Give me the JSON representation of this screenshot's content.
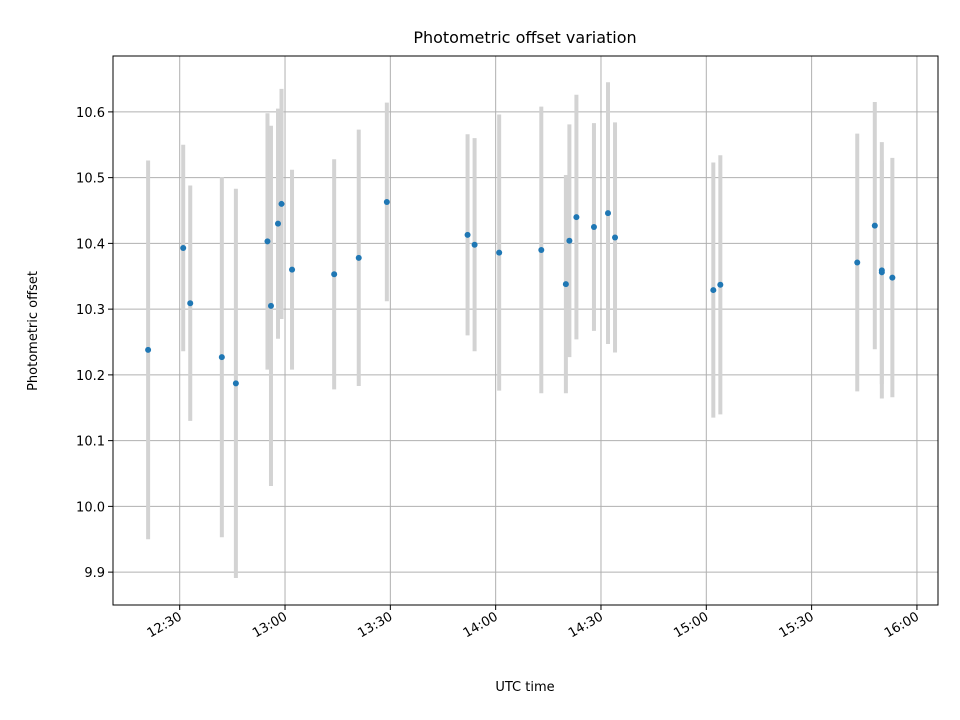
{
  "chart_data": {
    "type": "scatter",
    "title": "Photometric offset variation",
    "xlabel": "UTC time",
    "ylabel": "Photometric offset",
    "x_ticks": [
      "12:30",
      "13:00",
      "13:30",
      "14:00",
      "14:30",
      "15:00",
      "15:30",
      "16:00"
    ],
    "x_tick_values": [
      "12:30",
      "13:00",
      "13:30",
      "14:00",
      "14:30",
      "15:00",
      "15:30",
      "16:00"
    ],
    "y_ticks": [
      "9.9",
      "10.0",
      "10.1",
      "10.2",
      "10.3",
      "10.4",
      "10.5",
      "10.6"
    ],
    "y_tick_values": [
      9.9,
      10.0,
      10.1,
      10.2,
      10.3,
      10.4,
      10.5,
      10.6
    ],
    "xlim": [
      "12:11",
      "16:06"
    ],
    "ylim": [
      9.85,
      10.685
    ],
    "grid": true,
    "point_color": "#1f77b4",
    "errorbar_color": "#d3d3d3",
    "series": [
      {
        "points": [
          {
            "x": "12:21",
            "y": 10.238,
            "err": 0.288
          },
          {
            "x": "12:31",
            "y": 10.393,
            "err": 0.157
          },
          {
            "x": "12:33",
            "y": 10.309,
            "err": 0.179
          },
          {
            "x": "12:42",
            "y": 10.227,
            "err": 0.274
          },
          {
            "x": "12:46",
            "y": 10.187,
            "err": 0.296
          },
          {
            "x": "12:55",
            "y": 10.403,
            "err": 0.195
          },
          {
            "x": "12:56",
            "y": 10.305,
            "err": 0.274
          },
          {
            "x": "12:58",
            "y": 10.43,
            "err": 0.175
          },
          {
            "x": "12:59",
            "y": 10.46,
            "err": 0.175
          },
          {
            "x": "13:02",
            "y": 10.36,
            "err": 0.152
          },
          {
            "x": "13:14",
            "y": 10.353,
            "err": 0.175
          },
          {
            "x": "13:21",
            "y": 10.378,
            "err": 0.195
          },
          {
            "x": "13:29",
            "y": 10.463,
            "err": 0.151
          },
          {
            "x": "13:52",
            "y": 10.413,
            "err": 0.153
          },
          {
            "x": "13:54",
            "y": 10.398,
            "err": 0.162
          },
          {
            "x": "14:01",
            "y": 10.386,
            "err": 0.21
          },
          {
            "x": "14:13",
            "y": 10.39,
            "err": 0.218
          },
          {
            "x": "14:20",
            "y": 10.338,
            "err": 0.166
          },
          {
            "x": "14:21",
            "y": 10.404,
            "err": 0.177
          },
          {
            "x": "14:23",
            "y": 10.44,
            "err": 0.186
          },
          {
            "x": "14:28",
            "y": 10.425,
            "err": 0.158
          },
          {
            "x": "14:32",
            "y": 10.446,
            "err": 0.199
          },
          {
            "x": "14:34",
            "y": 10.409,
            "err": 0.175
          },
          {
            "x": "15:02",
            "y": 10.329,
            "err": 0.194
          },
          {
            "x": "15:04",
            "y": 10.337,
            "err": 0.197
          },
          {
            "x": "15:43",
            "y": 10.371,
            "err": 0.196
          },
          {
            "x": "15:48",
            "y": 10.427,
            "err": 0.188
          },
          {
            "x": "15:50",
            "y": 10.356,
            "err": 0.17
          },
          {
            "x": "15:50",
            "y": 10.359,
            "err": 0.195
          },
          {
            "x": "15:53",
            "y": 10.348,
            "err": 0.182
          }
        ]
      }
    ]
  }
}
